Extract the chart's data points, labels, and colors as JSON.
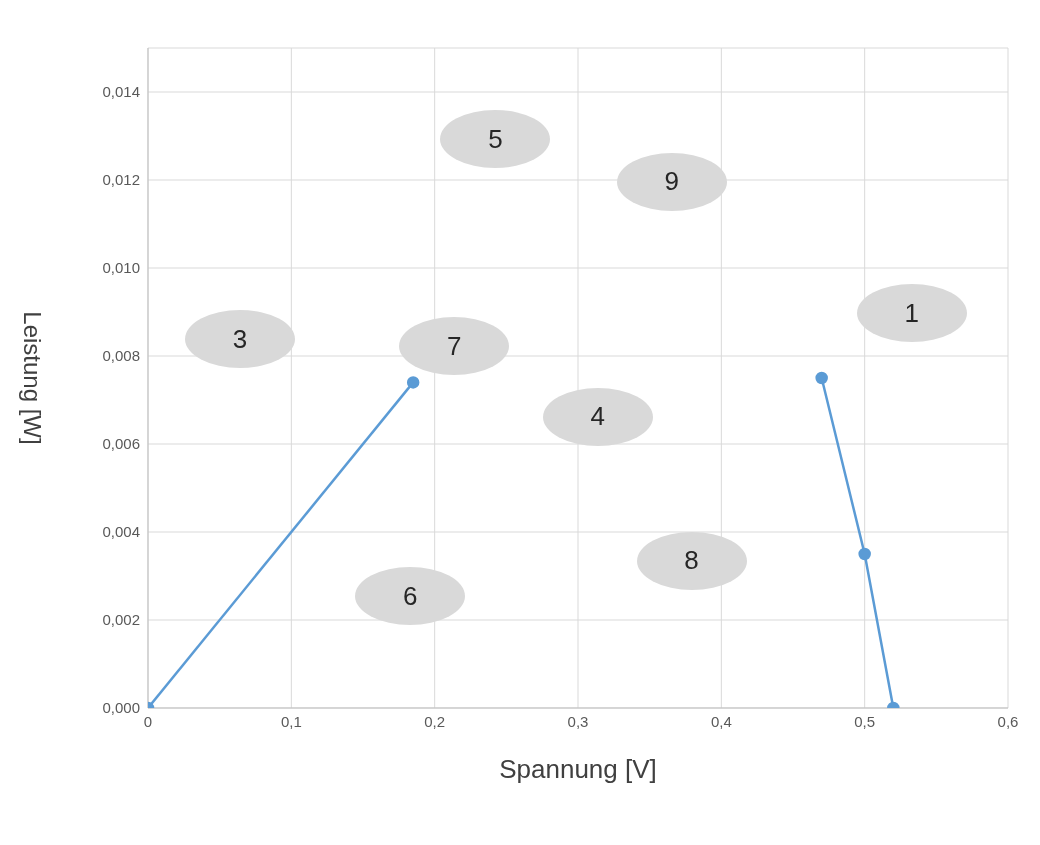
{
  "chart_data": {
    "type": "line",
    "xlabel": "Spannung [V]",
    "ylabel": "Leistung [W]",
    "series": [
      {
        "color": "#5b9bd5",
        "x": [
          0,
          0.185
        ],
        "values": [
          0,
          0.0074
        ]
      },
      {
        "color": "#5b9bd5",
        "x": [
          0.47,
          0.5,
          0.52
        ],
        "values": [
          0.0075,
          0.0035,
          0
        ]
      }
    ],
    "xlim": [
      0,
      0.6
    ],
    "xticks": [
      {
        "value": 0,
        "label": "0"
      },
      {
        "value": 0.1,
        "label": "0,1"
      },
      {
        "value": 0.2,
        "label": "0,2"
      },
      {
        "value": 0.3,
        "label": "0,3"
      },
      {
        "value": 0.4,
        "label": "0,4"
      },
      {
        "value": 0.5,
        "label": "0,5"
      },
      {
        "value": 0.6,
        "label": "0,6"
      }
    ],
    "ylim": [
      0,
      0.015
    ],
    "yticks": [
      {
        "value": 0,
        "label": "0,000"
      },
      {
        "value": 0.002,
        "label": "0,002"
      },
      {
        "value": 0.004,
        "label": "0,004"
      },
      {
        "value": 0.006,
        "label": "0,006"
      },
      {
        "value": 0.008,
        "label": "0,008"
      },
      {
        "value": 0.01,
        "label": "0,010"
      },
      {
        "value": 0.012,
        "label": "0,012"
      },
      {
        "value": 0.014,
        "label": "0,014"
      }
    ],
    "grid": true,
    "marker": "circle",
    "line_style": "solid",
    "annotations": [
      "1",
      "3",
      "5",
      "9",
      "7",
      "4",
      "8",
      "6"
    ]
  }
}
